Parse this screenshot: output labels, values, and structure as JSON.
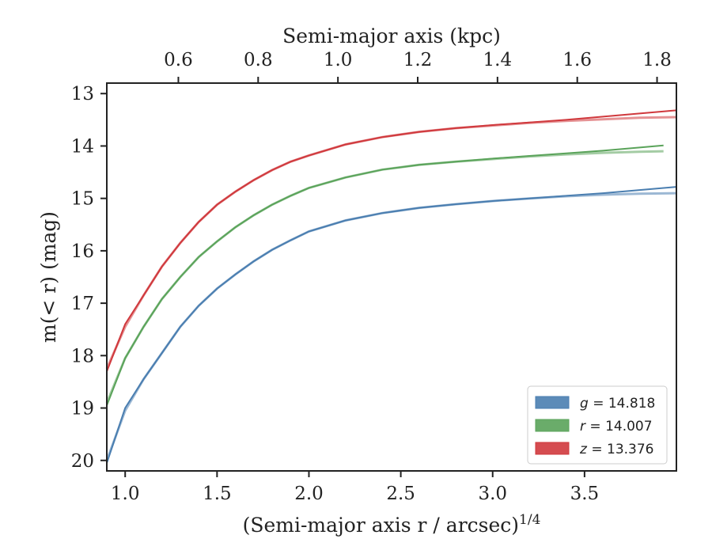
{
  "chart_data": {
    "type": "line",
    "xlabel": "(Semi-major axis r / arcsec)",
    "xlabel_sup": "1/4",
    "ylabel": "m(< r) (mag)",
    "top_xlabel": "Semi-major axis (kpc)",
    "xlim": [
      0.9,
      4.0
    ],
    "ylim": [
      20.2,
      12.8
    ],
    "y_inverted": true,
    "xticks": [
      1.0,
      1.5,
      2.0,
      2.5,
      3.0,
      3.5
    ],
    "xtick_labels": [
      "1.0",
      "1.5",
      "2.0",
      "2.5",
      "3.0",
      "3.5"
    ],
    "yticks": [
      13,
      14,
      15,
      16,
      17,
      18,
      19,
      20
    ],
    "ytick_labels": [
      "13",
      "14",
      "15",
      "16",
      "17",
      "18",
      "19",
      "20"
    ],
    "top_xticks": [
      0.6,
      0.8,
      1.0,
      1.2,
      1.4,
      1.6,
      1.8
    ],
    "top_xtick_labels": [
      "0.6",
      "0.8",
      "1.0",
      "1.2",
      "1.4",
      "1.6",
      "1.8"
    ],
    "top_axis_positions": [
      1.2895,
      1.7237,
      2.1579,
      2.5921,
      3.0263,
      3.4605,
      3.8947
    ],
    "grid": false,
    "legend_placement": "lower-right",
    "series": [
      {
        "name": "g = 14.818",
        "band": "g",
        "value": "14.818",
        "color": "#4a7eb0",
        "x": [
          0.9,
          1.0,
          1.1,
          1.2,
          1.3,
          1.4,
          1.5,
          1.6,
          1.7,
          1.8,
          1.9,
          2.0,
          2.2,
          2.4,
          2.6,
          2.8,
          3.0,
          3.2,
          3.4,
          3.6,
          3.8,
          4.0
        ],
        "y": [
          20.05,
          19.0,
          18.45,
          17.95,
          17.45,
          17.05,
          16.72,
          16.45,
          16.2,
          15.98,
          15.8,
          15.63,
          15.42,
          15.28,
          15.18,
          15.11,
          15.05,
          15.0,
          14.95,
          14.9,
          14.84,
          14.78
        ],
        "model_y": [
          20.0,
          19.05,
          18.45,
          17.95,
          17.45,
          17.05,
          16.72,
          16.45,
          16.2,
          15.98,
          15.8,
          15.63,
          15.42,
          15.28,
          15.18,
          15.11,
          15.05,
          15.0,
          14.96,
          14.93,
          14.91,
          14.9
        ]
      },
      {
        "name": "r = 14.007",
        "band": "r",
        "value": "14.007",
        "color": "#5aa35a",
        "x": [
          0.9,
          1.0,
          1.1,
          1.2,
          1.3,
          1.4,
          1.5,
          1.6,
          1.7,
          1.8,
          1.9,
          2.0,
          2.2,
          2.4,
          2.6,
          2.8,
          3.0,
          3.2,
          3.4,
          3.6,
          3.8,
          3.93
        ],
        "y": [
          18.95,
          18.05,
          17.45,
          16.92,
          16.5,
          16.12,
          15.82,
          15.55,
          15.32,
          15.12,
          14.95,
          14.8,
          14.6,
          14.45,
          14.36,
          14.3,
          14.24,
          14.19,
          14.14,
          14.09,
          14.03,
          13.99
        ],
        "model_y": [
          18.9,
          18.05,
          17.45,
          16.92,
          16.5,
          16.12,
          15.82,
          15.55,
          15.32,
          15.12,
          14.95,
          14.8,
          14.6,
          14.45,
          14.36,
          14.3,
          14.25,
          14.2,
          14.16,
          14.13,
          14.11,
          14.1
        ]
      },
      {
        "name": "z = 13.376",
        "band": "z",
        "value": "13.376",
        "color": "#d0393d",
        "x": [
          0.9,
          1.0,
          1.1,
          1.2,
          1.3,
          1.4,
          1.5,
          1.6,
          1.7,
          1.8,
          1.9,
          2.0,
          2.2,
          2.4,
          2.6,
          2.8,
          3.0,
          3.2,
          3.4,
          3.6,
          3.8,
          4.0
        ],
        "y": [
          18.3,
          17.4,
          16.85,
          16.3,
          15.85,
          15.45,
          15.12,
          14.87,
          14.65,
          14.46,
          14.3,
          14.18,
          13.97,
          13.83,
          13.73,
          13.66,
          13.6,
          13.55,
          13.5,
          13.44,
          13.38,
          13.32
        ],
        "model_y": [
          18.25,
          17.45,
          16.85,
          16.3,
          15.85,
          15.45,
          15.12,
          14.87,
          14.65,
          14.46,
          14.3,
          14.18,
          13.97,
          13.83,
          13.73,
          13.66,
          13.61,
          13.56,
          13.52,
          13.49,
          13.46,
          13.45
        ]
      }
    ]
  }
}
